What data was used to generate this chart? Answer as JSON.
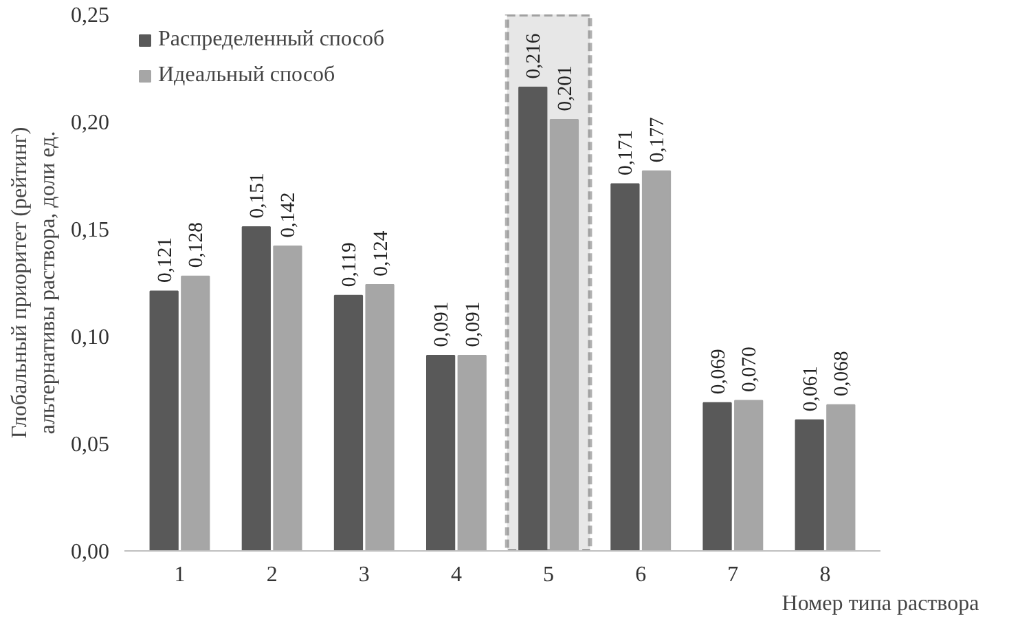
{
  "chart_data": {
    "type": "bar",
    "xlabel": "Номер типа раствора",
    "ylabel": "Глобальный приоритет (рейтинг)\nальтернативы раствора, доли ед.",
    "categories": [
      "1",
      "2",
      "3",
      "4",
      "5",
      "6",
      "7",
      "8"
    ],
    "series": [
      {
        "name": "Распределенный способ",
        "color": "#595959",
        "values": [
          0.121,
          0.151,
          0.119,
          0.091,
          0.216,
          0.171,
          0.069,
          0.061
        ],
        "value_labels": [
          "0,121",
          "0,151",
          "0,119",
          "0,091",
          "0,216",
          "0,171",
          "0,069",
          "0,061"
        ]
      },
      {
        "name": "Идеальный способ",
        "color": "#a6a6a6",
        "values": [
          0.128,
          0.142,
          0.124,
          0.091,
          0.201,
          0.177,
          0.07,
          0.068
        ],
        "value_labels": [
          "0,128",
          "0,142",
          "0,124",
          "0,091",
          "0,201",
          "0,177",
          "0,070",
          "0,068"
        ]
      }
    ],
    "ylim": [
      0,
      0.25
    ],
    "yticks": [
      {
        "value": 0,
        "label": "0,00"
      },
      {
        "value": 0.05,
        "label": "0,05"
      },
      {
        "value": 0.1,
        "label": "0,10"
      },
      {
        "value": 0.15,
        "label": "0,15"
      },
      {
        "value": 0.2,
        "label": "0,20"
      },
      {
        "value": 0.25,
        "label": "0,25"
      }
    ],
    "bands": [
      {
        "axis": "x",
        "from": "5",
        "to": "5",
        "color": "#e7e7e7"
      }
    ],
    "legend": "top left",
    "grid": false
  }
}
